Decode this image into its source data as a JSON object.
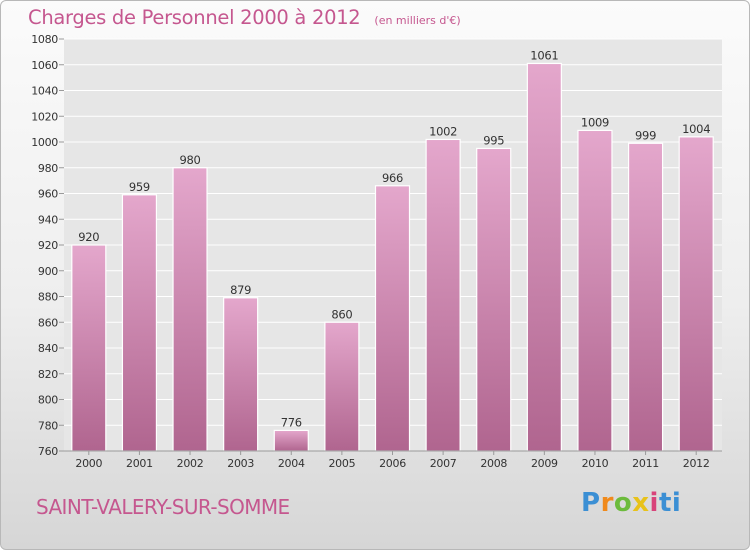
{
  "header": {
    "title": "Charges de Personnel 2000 à 2012",
    "subtitle": "(en milliers d'€)"
  },
  "footer": {
    "place": "SAINT-VALERY-SUR-SOMME",
    "brand": "Proxiti"
  },
  "colors": {
    "bar_top": "#e4a7cc",
    "bar_bottom": "#b0658f",
    "title": "#c5578f",
    "plot_bg": "#e6e6e6",
    "grid": "#ffffff"
  },
  "chart_data": {
    "type": "bar",
    "title": "Charges de Personnel 2000 à 2012",
    "subtitle": "(en milliers d'€)",
    "categories": [
      "2000",
      "2001",
      "2002",
      "2003",
      "2004",
      "2005",
      "2006",
      "2007",
      "2008",
      "2009",
      "2010",
      "2011",
      "2012"
    ],
    "values": [
      920,
      959,
      980,
      879,
      776,
      860,
      966,
      1002,
      995,
      1061,
      1009,
      999,
      1004
    ],
    "data_labels": [
      "920",
      "959",
      "980",
      "879",
      "776",
      "860",
      "966",
      "1002",
      "995",
      "1061",
      "1009",
      "999",
      "1004"
    ],
    "ylim": [
      760,
      1080
    ],
    "yticks": [
      760,
      780,
      800,
      820,
      840,
      860,
      880,
      900,
      920,
      940,
      960,
      980,
      1000,
      1020,
      1040,
      1060,
      1080
    ],
    "grid": true,
    "legend": "none",
    "xlabel": "",
    "ylabel": ""
  }
}
